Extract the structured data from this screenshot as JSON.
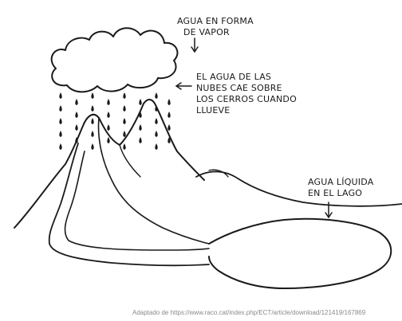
{
  "labels": {
    "vapor": {
      "line1": "AGUA EN FORMA",
      "line2": "DE VAPOR"
    },
    "rain": {
      "line1": "EL AGUA DE LAS",
      "line2": "NUBES CAE SOBRE",
      "line3": "LOS CERROS CUANDO",
      "line4": "LLUEVE"
    },
    "lake": {
      "line1": "AGUA LÍQUIDA",
      "line2": "EN EL LAGO"
    }
  },
  "source": "Adaptado de https://www.raco.cat/index.php/ECT/article/download/121419/167869",
  "colors": {
    "ink": "#1a1a1a",
    "background": "#ffffff",
    "source_text": "#8a8a8a"
  }
}
